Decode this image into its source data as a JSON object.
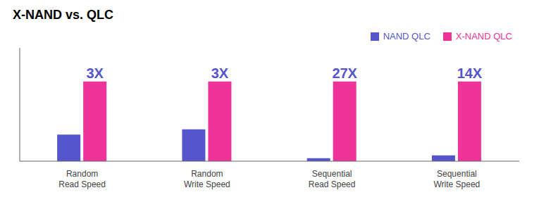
{
  "chart_data": {
    "type": "bar",
    "title": "X-NAND vs. QLC",
    "categories": [
      "Random\nRead Speed",
      "Random\nWrite Speed",
      "Sequential\nRead Speed",
      "Sequential\nWrite Speed"
    ],
    "series": [
      {
        "name": "NAND QLC",
        "color": "#5555cc",
        "values": [
          0.3,
          0.36,
          0.034,
          0.065
        ]
      },
      {
        "name": "X-NAND QLC",
        "color": "#ee3399",
        "values": [
          0.9,
          0.9,
          0.9,
          0.9
        ],
        "annotations": [
          "3X",
          "3X",
          "27X",
          "14X"
        ]
      }
    ],
    "ylim": [
      0,
      1.28
    ],
    "tick_labels": "x",
    "grid": false,
    "legend": "upper right"
  }
}
